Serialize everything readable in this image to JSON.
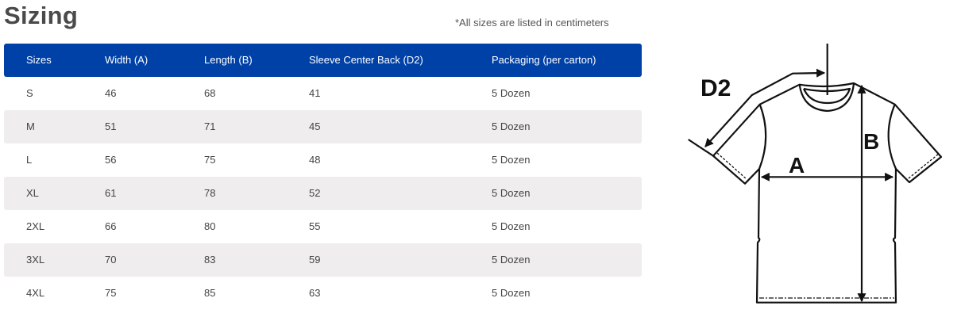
{
  "title": "Sizing",
  "note": "*All sizes are listed in centimeters",
  "table": {
    "headers": [
      "Sizes",
      "Width (A)",
      "Length (B)",
      "Sleeve Center Back (D2)",
      "Packaging (per carton)"
    ],
    "rows": [
      [
        "S",
        "46",
        "68",
        "41",
        "5 Dozen"
      ],
      [
        "M",
        "51",
        "71",
        "45",
        "5 Dozen"
      ],
      [
        "L",
        "56",
        "75",
        "48",
        "5 Dozen"
      ],
      [
        "XL",
        "61",
        "78",
        "52",
        "5 Dozen"
      ],
      [
        "2XL",
        "66",
        "80",
        "55",
        "5 Dozen"
      ],
      [
        "3XL",
        "70",
        "83",
        "59",
        "5 Dozen"
      ],
      [
        "4XL",
        "75",
        "85",
        "63",
        "5 Dozen"
      ]
    ]
  },
  "diagram": {
    "label_d2": "D2",
    "label_a": "A",
    "label_b": "B"
  },
  "colors": {
    "header_bg": "#0041a8",
    "alt_row_bg": "#efedee"
  }
}
